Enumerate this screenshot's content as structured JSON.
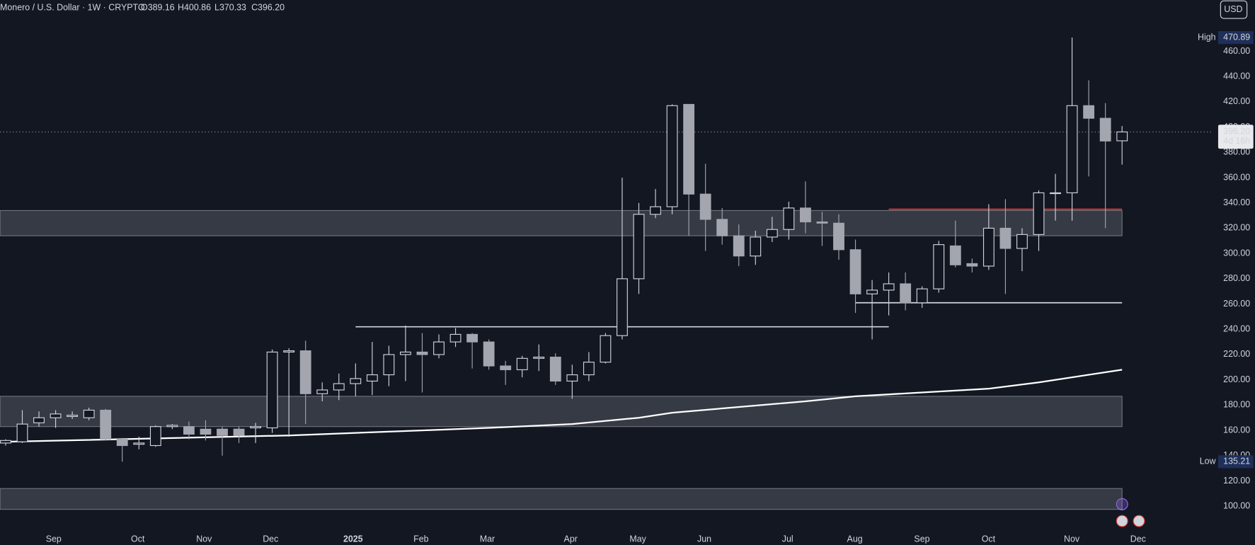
{
  "chart_data": {
    "type": "candlestick",
    "title": "Monero / U.S. Dollar · 1W · CRYPTO",
    "ohlc_header": [
      "O389.16",
      "H400.86",
      "L370.33",
      "C396.20"
    ],
    "currency": "USD",
    "high_marker": {
      "label": "High",
      "value": "470.89"
    },
    "low_marker": {
      "label": "Low",
      "value": "135.21"
    },
    "last_price": {
      "value": 396.2,
      "label": "396.20",
      "countdown": "4d 16h"
    },
    "up_color": "#d1d4dc",
    "down_color": "#a3a6af",
    "open": [
      150,
      151,
      166,
      170,
      171,
      170,
      176,
      153,
      149,
      148,
      163,
      163,
      161,
      161,
      161,
      162,
      162,
      222,
      223,
      189,
      192,
      197,
      199,
      204,
      220,
      222,
      220,
      230,
      236,
      230,
      211,
      208,
      217,
      218,
      199,
      204,
      214,
      235,
      280,
      331,
      337,
      418,
      347,
      327,
      314,
      298,
      313,
      319,
      336,
      325,
      324,
      303,
      268,
      271,
      276,
      261,
      272,
      306,
      292,
      290,
      320,
      304,
      315,
      348,
      348,
      417,
      407,
      389.16
    ],
    "high": [
      153,
      176,
      175,
      176,
      175,
      178,
      177,
      154,
      155,
      164,
      165,
      167,
      168,
      163,
      163,
      166,
      224,
      225,
      231,
      198,
      205,
      213,
      230,
      227,
      243,
      237,
      236,
      241,
      237,
      232,
      215,
      219,
      228,
      221,
      212,
      222,
      237,
      360,
      340,
      351,
      418,
      418,
      371,
      336,
      323,
      318,
      329,
      341,
      357,
      333,
      331,
      311,
      279,
      285,
      285,
      274,
      310,
      326,
      296,
      339,
      343,
      320,
      350,
      363,
      470.89,
      437,
      419,
      400.86
    ],
    "low": [
      148,
      150,
      163,
      162,
      169,
      168,
      152,
      135.21,
      145,
      147,
      161,
      153,
      152,
      140,
      150,
      150,
      158,
      155,
      165,
      183,
      184,
      187,
      188,
      195,
      199,
      190,
      217,
      226,
      209,
      208,
      196,
      202,
      207,
      196,
      185,
      199,
      213,
      232,
      268,
      328,
      331,
      314,
      302,
      307,
      290,
      291,
      309,
      311,
      316,
      306,
      295,
      253,
      232,
      251,
      255,
      257,
      269,
      289,
      285,
      287,
      268,
      286,
      302,
      326,
      326,
      361,
      320,
      370.33
    ],
    "close": [
      152,
      165,
      170,
      173,
      172,
      176,
      153,
      148,
      150,
      163,
      164,
      157,
      157,
      156,
      156,
      163,
      222,
      223,
      189,
      192,
      197,
      201,
      204,
      220,
      222,
      220,
      230,
      236,
      230,
      211,
      208,
      217,
      218,
      199,
      204,
      214,
      235,
      280,
      331,
      337,
      417,
      347,
      327,
      314,
      298,
      313,
      319,
      336,
      325,
      324,
      303,
      268,
      271,
      276,
      261,
      272,
      307,
      291,
      290,
      320,
      304,
      315,
      348,
      348,
      417,
      407,
      389,
      396.2
    ],
    "moving_average": {
      "color": "#ffffff",
      "x": [
        0,
        17,
        29,
        34,
        38,
        40,
        48,
        51,
        55,
        59,
        62,
        67
      ],
      "values": [
        151,
        156,
        162,
        165,
        170,
        174,
        183,
        187,
        190,
        193,
        198,
        208
      ]
    },
    "zones": [
      {
        "low": 314,
        "high": 334,
        "to": 67
      },
      {
        "low": 163,
        "high": 187,
        "to": 67
      },
      {
        "low": 97.5,
        "high": 114,
        "to": 67
      }
    ],
    "levels": [
      {
        "value": 242,
        "from": 21,
        "to": 53,
        "color": "#d1d4dc"
      },
      {
        "value": 261,
        "from": 51,
        "to": 67,
        "color": "#d1d4dc"
      },
      {
        "value": 335,
        "from": 53,
        "to": 67,
        "color": "#e53935"
      }
    ],
    "ylim": [
      82.6,
      500.6
    ],
    "yticks": [
      {
        "value": 100,
        "label": "100.00"
      },
      {
        "value": 120,
        "label": "120.00"
      },
      {
        "value": 140,
        "label": "140.00"
      },
      {
        "value": 160,
        "label": "160.00"
      },
      {
        "value": 180,
        "label": "180.00"
      },
      {
        "value": 200,
        "label": "200.00"
      },
      {
        "value": 220,
        "label": "220.00"
      },
      {
        "value": 240,
        "label": "240.00"
      },
      {
        "value": 260,
        "label": "260.00"
      },
      {
        "value": 280,
        "label": "280.00"
      },
      {
        "value": 300,
        "label": "300.00"
      },
      {
        "value": 320,
        "label": "320.00"
      },
      {
        "value": 340,
        "label": "340.00"
      },
      {
        "value": 360,
        "label": "360.00"
      },
      {
        "value": 380,
        "label": "380.00"
      },
      {
        "value": 400,
        "label": "400.00"
      },
      {
        "value": 420,
        "label": "420.00"
      },
      {
        "value": 440,
        "label": "440.00"
      },
      {
        "value": 460,
        "label": "460.00"
      }
    ],
    "xticks": [
      {
        "value": 2.88,
        "label": "Sep"
      },
      {
        "value": 7.93,
        "label": "Oct"
      },
      {
        "value": 11.91,
        "label": "Nov"
      },
      {
        "value": 15.9,
        "label": "Dec"
      },
      {
        "value": 20.85,
        "label": "2025"
      },
      {
        "value": 24.93,
        "label": "Feb"
      },
      {
        "value": 28.91,
        "label": "Mar"
      },
      {
        "value": 33.91,
        "label": "Apr"
      },
      {
        "value": 37.94,
        "label": "May"
      },
      {
        "value": 41.93,
        "label": "Jun"
      },
      {
        "value": 46.93,
        "label": "Jul"
      },
      {
        "value": 50.96,
        "label": "Aug"
      },
      {
        "value": 54.99,
        "label": "Sep"
      },
      {
        "value": 58.98,
        "label": "Oct"
      },
      {
        "value": 63.98,
        "label": "Nov"
      },
      {
        "value": 67.96,
        "label": "Dec"
      }
    ]
  }
}
